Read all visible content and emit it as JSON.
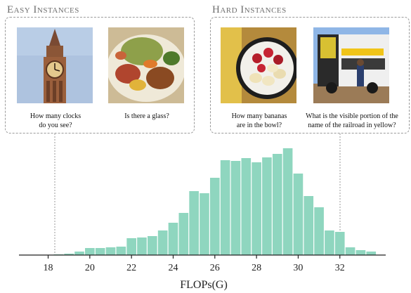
{
  "groups": [
    {
      "title": "Easy Instances",
      "items": [
        {
          "caption": "How many clocks\ndo you see?",
          "image": "clock-tower-photo"
        },
        {
          "caption": "Is there a glass?",
          "image": "food-plate-photo"
        }
      ]
    },
    {
      "title": "Hard Instances",
      "items": [
        {
          "caption": "How many bananas\nare in the bowl?",
          "image": "fruit-bowl-photo"
        },
        {
          "caption": "What is the visible portion of the\nname of the railroad in yellow?",
          "image": "intercape-bus-photo"
        }
      ]
    }
  ],
  "chart_data": {
    "type": "bar",
    "xlabel": "FLOPs(G)",
    "ylabel": "",
    "title": "",
    "x_ticks": [
      18,
      20,
      22,
      24,
      26,
      28,
      30,
      32
    ],
    "xlim": [
      16.6,
      34.2
    ],
    "ylim": [
      0,
      155
    ],
    "bar_color": "#8fd6bf",
    "bins": [
      {
        "x": 18.5,
        "value": 1
      },
      {
        "x": 19.0,
        "value": 2
      },
      {
        "x": 19.5,
        "value": 5
      },
      {
        "x": 20.0,
        "value": 10
      },
      {
        "x": 20.5,
        "value": 10
      },
      {
        "x": 21.0,
        "value": 11
      },
      {
        "x": 21.5,
        "value": 12
      },
      {
        "x": 22.0,
        "value": 24
      },
      {
        "x": 22.5,
        "value": 25
      },
      {
        "x": 23.0,
        "value": 27
      },
      {
        "x": 23.5,
        "value": 35
      },
      {
        "x": 24.0,
        "value": 46
      },
      {
        "x": 24.5,
        "value": 60
      },
      {
        "x": 25.0,
        "value": 91
      },
      {
        "x": 25.5,
        "value": 88
      },
      {
        "x": 26.0,
        "value": 110
      },
      {
        "x": 26.5,
        "value": 135
      },
      {
        "x": 27.0,
        "value": 134
      },
      {
        "x": 27.5,
        "value": 138
      },
      {
        "x": 28.0,
        "value": 132
      },
      {
        "x": 28.5,
        "value": 139
      },
      {
        "x": 29.0,
        "value": 144
      },
      {
        "x": 29.5,
        "value": 152
      },
      {
        "x": 30.0,
        "value": 116
      },
      {
        "x": 30.5,
        "value": 84
      },
      {
        "x": 31.0,
        "value": 68
      },
      {
        "x": 31.5,
        "value": 35
      },
      {
        "x": 32.0,
        "value": 33
      },
      {
        "x": 32.5,
        "value": 11
      },
      {
        "x": 33.0,
        "value": 7
      },
      {
        "x": 33.5,
        "value": 5
      }
    ],
    "grid": false
  }
}
